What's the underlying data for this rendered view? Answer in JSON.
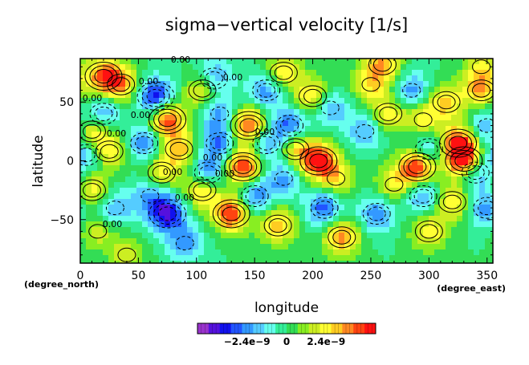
{
  "chart_data": {
    "type": "heatmap",
    "title": "sigma−vertical velocity [1/s]",
    "xlabel": "longitude",
    "ylabel": "latitude",
    "x_unit": "(degree_east)",
    "y_unit": "(degree_north)",
    "xlim": [
      0,
      355
    ],
    "ylim": [
      -87,
      87
    ],
    "xticks": [
      "0",
      "50",
      "100",
      "150",
      "200",
      "250",
      "300",
      "350"
    ],
    "yticks": [
      "50",
      "0",
      "−50"
    ],
    "xtick_values": [
      0,
      50,
      100,
      150,
      200,
      250,
      300,
      350
    ],
    "ytick_values": [
      50,
      0,
      -50
    ],
    "contour_labels": [
      "0.00",
      "0.00",
      "0.00",
      "0.00",
      "0.00",
      "0.00",
      "0.00",
      "0.00",
      "0.00",
      "0.00",
      "0.00",
      "0.00"
    ],
    "colorbar": {
      "tick_labels": [
        "−2.4e−9",
        "0",
        "2.4e−9"
      ],
      "tick_values": [
        -2.4e-09,
        0,
        2.4e-09
      ],
      "range": [
        -5.4e-09,
        5.4e-09
      ],
      "colors": [
        "#9933cc",
        "#5511dd",
        "#1111ee",
        "#2255ff",
        "#3399ff",
        "#55ccff",
        "#66ffee",
        "#33ee99",
        "#33dd55",
        "#88ee22",
        "#ccee22",
        "#ffff33",
        "#ffcc22",
        "#ff8822",
        "#ff4411",
        "#ff1111"
      ]
    },
    "features": [
      {
        "lon": 20,
        "lat": 72,
        "value": 4e-09
      },
      {
        "lon": 35,
        "lat": 65,
        "value": 3.2e-09
      },
      {
        "lon": 20,
        "lat": 40,
        "value": -2.5e-09
      },
      {
        "lon": 10,
        "lat": 25,
        "value": 3e-09
      },
      {
        "lon": 5,
        "lat": 5,
        "value": -2.5e-09
      },
      {
        "lon": 25,
        "lat": 8,
        "value": 2.8e-09
      },
      {
        "lon": 10,
        "lat": -25,
        "value": 2.6e-09
      },
      {
        "lon": 30,
        "lat": -40,
        "value": -2.2e-09
      },
      {
        "lon": 15,
        "lat": -60,
        "value": 1.8e-09
      },
      {
        "lon": 65,
        "lat": 55,
        "value": -4e-09
      },
      {
        "lon": 75,
        "lat": 35,
        "value": 4.5e-09
      },
      {
        "lon": 85,
        "lat": 10,
        "value": 3e-09
      },
      {
        "lon": 55,
        "lat": 15,
        "value": -2.6e-09
      },
      {
        "lon": 70,
        "lat": -10,
        "value": 2.5e-09
      },
      {
        "lon": 60,
        "lat": -30,
        "value": -2.2e-09
      },
      {
        "lon": 75,
        "lat": -45,
        "value": -4.2e-09
      },
      {
        "lon": 90,
        "lat": -70,
        "value": -2.4e-09
      },
      {
        "lon": 105,
        "lat": 60,
        "value": 2.8e-09
      },
      {
        "lon": 115,
        "lat": 70,
        "value": -2.6e-09
      },
      {
        "lon": 120,
        "lat": 40,
        "value": -2.4e-09
      },
      {
        "lon": 120,
        "lat": 15,
        "value": -2.8e-09
      },
      {
        "lon": 110,
        "lat": -10,
        "value": -3e-09
      },
      {
        "lon": 105,
        "lat": -25,
        "value": 3.2e-09
      },
      {
        "lon": 130,
        "lat": -45,
        "value": 4.8e-09
      },
      {
        "lon": 145,
        "lat": 30,
        "value": 4.8e-09
      },
      {
        "lon": 140,
        "lat": -5,
        "value": 5.2e-09
      },
      {
        "lon": 160,
        "lat": 15,
        "value": -2.6e-09
      },
      {
        "lon": 150,
        "lat": -30,
        "value": -2.8e-09
      },
      {
        "lon": 160,
        "lat": 60,
        "value": -2.6e-09
      },
      {
        "lon": 175,
        "lat": 75,
        "value": 2.8e-09
      },
      {
        "lon": 180,
        "lat": 30,
        "value": -3e-09
      },
      {
        "lon": 185,
        "lat": 10,
        "value": 2.6e-09
      },
      {
        "lon": 175,
        "lat": -15,
        "value": -2.4e-09
      },
      {
        "lon": 170,
        "lat": -55,
        "value": 3.2e-09
      },
      {
        "lon": 205,
        "lat": 0,
        "value": 5e-09
      },
      {
        "lon": 200,
        "lat": 55,
        "value": 3e-09
      },
      {
        "lon": 215,
        "lat": 45,
        "value": -2.4e-09
      },
      {
        "lon": 220,
        "lat": -15,
        "value": 2.4e-09
      },
      {
        "lon": 210,
        "lat": -40,
        "value": -3.2e-09
      },
      {
        "lon": 225,
        "lat": -65,
        "value": 3.8e-09
      },
      {
        "lon": 250,
        "lat": 65,
        "value": 2.4e-09
      },
      {
        "lon": 245,
        "lat": 25,
        "value": -2.2e-09
      },
      {
        "lon": 255,
        "lat": -45,
        "value": -2.6e-09
      },
      {
        "lon": 265,
        "lat": 40,
        "value": 2.6e-09
      },
      {
        "lon": 270,
        "lat": -20,
        "value": 2.4e-09
      },
      {
        "lon": 285,
        "lat": 60,
        "value": -2.4e-09
      },
      {
        "lon": 295,
        "lat": 35,
        "value": 2.4e-09
      },
      {
        "lon": 290,
        "lat": -5,
        "value": 5.2e-09
      },
      {
        "lon": 300,
        "lat": 10,
        "value": -2.6e-09
      },
      {
        "lon": 295,
        "lat": -30,
        "value": -2.6e-09
      },
      {
        "lon": 300,
        "lat": -60,
        "value": 2.6e-09
      },
      {
        "lon": 315,
        "lat": 50,
        "value": 2.8e-09
      },
      {
        "lon": 325,
        "lat": 15,
        "value": 4.6e-09
      },
      {
        "lon": 330,
        "lat": 0,
        "value": 5.2e-09
      },
      {
        "lon": 340,
        "lat": -10,
        "value": -2.6e-09
      },
      {
        "lon": 320,
        "lat": -35,
        "value": 2.8e-09
      },
      {
        "lon": 345,
        "lat": 60,
        "value": 3.2e-09
      },
      {
        "lon": 350,
        "lat": 30,
        "value": -2.4e-09
      },
      {
        "lon": 350,
        "lat": -40,
        "value": -2.6e-09
      },
      {
        "lon": 345,
        "lat": 80,
        "value": 2e-09
      },
      {
        "lon": 260,
        "lat": 82,
        "value": 3.2e-09
      },
      {
        "lon": 40,
        "lat": -80,
        "value": 1.8e-09
      }
    ]
  }
}
